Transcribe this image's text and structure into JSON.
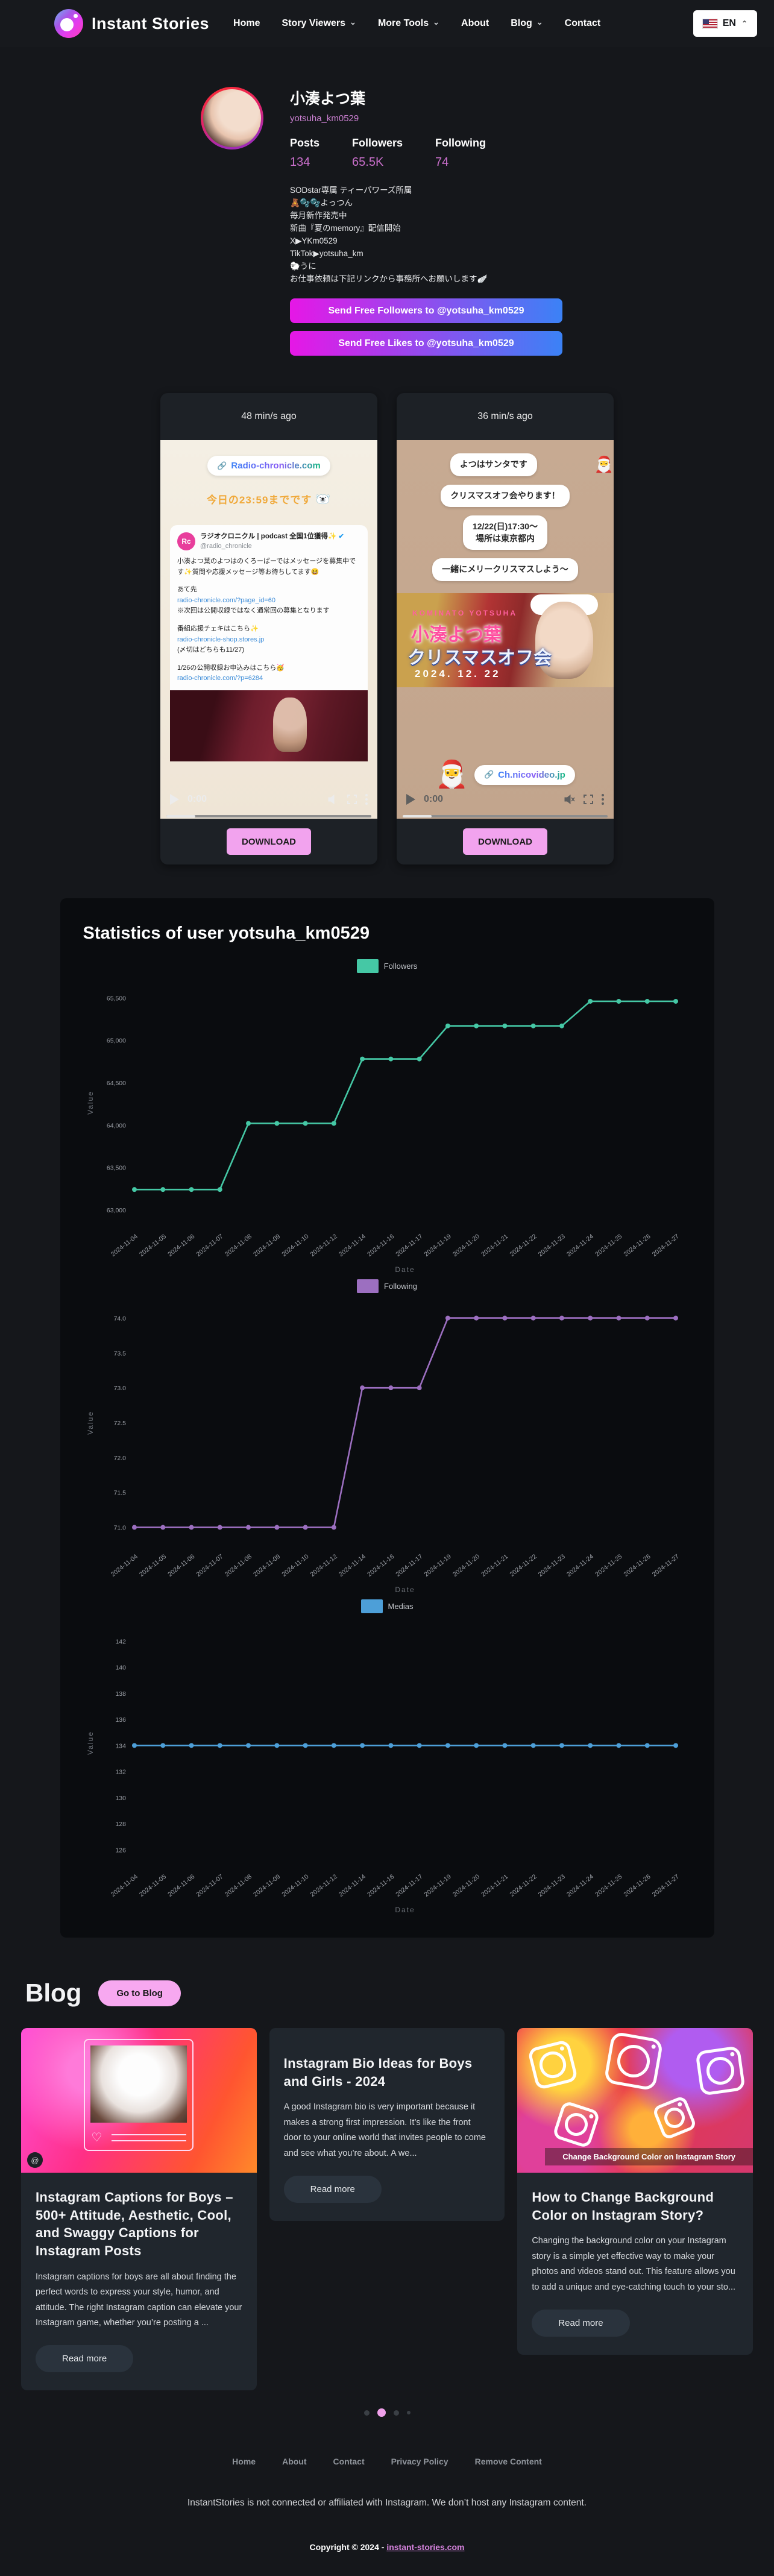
{
  "header": {
    "brand": "Instant Stories",
    "nav": [
      {
        "label": "Home"
      },
      {
        "label": "Story Viewers"
      },
      {
        "label": "More Tools"
      },
      {
        "label": "About"
      },
      {
        "label": "Blog"
      },
      {
        "label": "Contact"
      }
    ],
    "language": "EN"
  },
  "profile": {
    "name": "小湊よつ葉",
    "username": "yotsuha_km0529",
    "stats": [
      {
        "label": "Posts",
        "value": "134"
      },
      {
        "label": "Followers",
        "value": "65.5K"
      },
      {
        "label": "Following",
        "value": "74"
      }
    ],
    "bio": [
      "SODstar専属 ティーパワーズ所属",
      "🧸🫧🫧よっつん",
      "毎月新作発売中",
      "新曲『夏のmemory』配信開始",
      "X▶YKm0529",
      "TikTok▶yotsuha_km",
      "🐑うに",
      "お仕事依頼は下記リンクから事務所へお願いします🪽"
    ],
    "actions": [
      "Send Free Followers to @yotsuha_km0529",
      "Send Free Likes to @yotsuha_km0529"
    ]
  },
  "stories": [
    {
      "age": "48 min/s ago",
      "time": "0:00",
      "download": "DOWNLOAD",
      "link_pill": "Radio-chronicle.com",
      "deadline": "今日の23:59までです",
      "tweet": {
        "avatar": "Rc",
        "author": "ラジオクロニクル | podcast 全国1位獲得✨",
        "handle": "@radio_chronicle",
        "lines": [
          "小湊よつ葉のよつはのくろーばーではメッセージを募集中です✨質問や応援メッセージ等お待ちしてます😆",
          "あて先",
          "radio-chronicle.com/?page_id=60",
          "※次回は公開収録ではなく通常回の募集となります",
          "番組応援チェキはこちら✨",
          "radio-chronicle-shop.stores.jp",
          "(〆切はどちらも11/27)",
          "1/26の公開収録お申込みはこちら🥳",
          "radio-chronicle.com/?p=6284"
        ]
      }
    },
    {
      "age": "36 min/s ago",
      "time": "0:00",
      "download": "DOWNLOAD",
      "bubbles": {
        "b1": "よつはサンタです",
        "b2": "クリスマスオフ会やります！",
        "b3a": "12/22(日)17:30〜",
        "b3b": "場所は東京都内",
        "b4": "一緒にメリークリスマスしよう〜"
      },
      "banner": {
        "kicker": "KOMINATO YOTSUHA",
        "name": "小湊よつ葉",
        "event": "クリスマスオフ会",
        "date": "2024. 12. 22"
      },
      "link_pill": "Ch.nicovideo.jp"
    }
  ],
  "statistics": {
    "title": "Statistics of user yotsuha_km0529"
  },
  "chart_data": [
    {
      "type": "line",
      "name": "Followers",
      "color": "#45c8a5",
      "x": [
        "2024-11-04",
        "2024-11-05",
        "2024-11-06",
        "2024-11-07",
        "2024-11-08",
        "2024-11-09",
        "2024-11-10",
        "2024-11-12",
        "2024-11-14",
        "2024-11-16",
        "2024-11-17",
        "2024-11-19",
        "2024-11-20",
        "2024-11-21",
        "2024-11-22",
        "2024-11-23",
        "2024-11-24",
        "2024-11-25",
        "2024-11-26",
        "2024-11-27"
      ],
      "values": [
        63240,
        63240,
        63240,
        63240,
        64020,
        64020,
        64020,
        64020,
        64780,
        64780,
        64780,
        65170,
        65170,
        65170,
        65170,
        65170,
        65460,
        65460,
        65460,
        65460
      ],
      "xlabel": "Date",
      "ylabel": "Value",
      "ylim": [
        62850,
        65680
      ],
      "yticks": [
        63000,
        63500,
        64000,
        64500,
        65000,
        65500
      ],
      "ytick_labels": [
        "63,000",
        "63,500",
        "64,000",
        "64,500",
        "65,000",
        "65,500"
      ],
      "legend_position": "top",
      "grid": false
    },
    {
      "type": "line",
      "name": "Following",
      "color": "#9c6fc0",
      "x": [
        "2024-11-04",
        "2024-11-05",
        "2024-11-06",
        "2024-11-07",
        "2024-11-08",
        "2024-11-09",
        "2024-11-10",
        "2024-11-12",
        "2024-11-14",
        "2024-11-16",
        "2024-11-17",
        "2024-11-19",
        "2024-11-20",
        "2024-11-21",
        "2024-11-22",
        "2024-11-23",
        "2024-11-24",
        "2024-11-25",
        "2024-11-26",
        "2024-11-27"
      ],
      "values": [
        71,
        71,
        71,
        71,
        71,
        71,
        71,
        71,
        73,
        73,
        73,
        74,
        74,
        74,
        74,
        74,
        74,
        74,
        74,
        74
      ],
      "xlabel": "Date",
      "ylabel": "Value",
      "ylim": [
        70.78,
        74.22
      ],
      "yticks": [
        71.0,
        71.5,
        72.0,
        72.5,
        73.0,
        73.5,
        74.0
      ],
      "ytick_labels": [
        "71.0",
        "71.5",
        "72.0",
        "72.5",
        "73.0",
        "73.5",
        "74.0"
      ],
      "legend_position": "top",
      "grid": false
    },
    {
      "type": "line",
      "name": "Medias",
      "color": "#4d9fd8",
      "x": [
        "2024-11-04",
        "2024-11-05",
        "2024-11-06",
        "2024-11-07",
        "2024-11-08",
        "2024-11-09",
        "2024-11-10",
        "2024-11-12",
        "2024-11-14",
        "2024-11-16",
        "2024-11-17",
        "2024-11-19",
        "2024-11-20",
        "2024-11-21",
        "2024-11-22",
        "2024-11-23",
        "2024-11-24",
        "2024-11-25",
        "2024-11-26",
        "2024-11-27"
      ],
      "values": [
        134,
        134,
        134,
        134,
        134,
        134,
        134,
        134,
        134,
        134,
        134,
        134,
        134,
        134,
        134,
        134,
        134,
        134,
        134,
        134
      ],
      "xlabel": "Date",
      "ylabel": "Value",
      "ylim": [
        125.0,
        143.4
      ],
      "yticks": [
        126,
        128,
        130,
        132,
        134,
        136,
        138,
        140,
        142
      ],
      "ytick_labels": [
        "126",
        "128",
        "130",
        "132",
        "134",
        "136",
        "138",
        "140",
        "142"
      ],
      "legend_position": "top",
      "grid": false
    }
  ],
  "blog": {
    "heading": "Blog",
    "goto_label": "Go to Blog",
    "posts": [
      {
        "title": "Instagram Captions for Boys – 500+ Attitude, Aesthetic, Cool, and Swaggy Captions for Instagram Posts",
        "excerpt": "Instagram captions for boys are all about finding the perfect words to express your style, humor, and attitude. The right Instagram caption can elevate your Instagram game, whether you’re posting a ...",
        "read_more": "Read more"
      },
      {
        "title": "Instagram Bio Ideas for Boys and Girls - 2024",
        "excerpt": "A good Instagram bio is very important because it makes a strong first impression. It’s like the front door to your online world that invites people to come and see what you’re about. A we...",
        "read_more": "Read more"
      },
      {
        "title": "How to Change Background Color on Instagram Story?",
        "image_caption": "Change Background Color on Instagram Story",
        "excerpt": "Changing the background color on your Instagram story is a simple yet effective way to make your photos and videos stand out. This feature allows you to add a unique and eye-catching touch to your sto...",
        "read_more": "Read more"
      }
    ]
  },
  "footer": {
    "links": [
      "Home",
      "About",
      "Contact",
      "Privacy Policy",
      "Remove Content"
    ],
    "disclaimer": "InstantStories is not connected or affiliated with Instagram. We don’t host any Instagram content.",
    "copyright_prefix": "Copyright © 2024 - ",
    "copyright_link": "instant-stories.com"
  }
}
